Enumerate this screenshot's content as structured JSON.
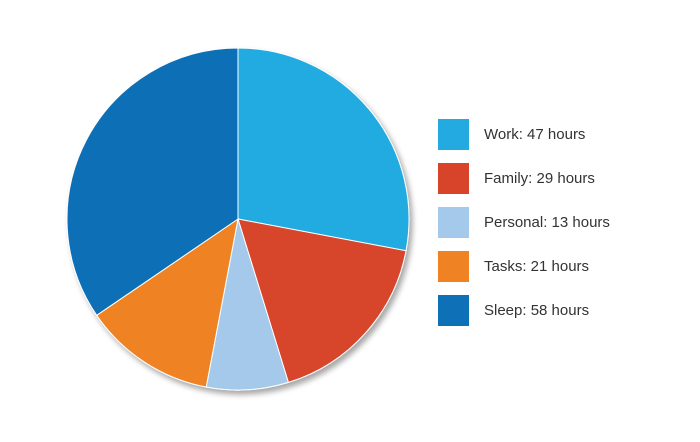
{
  "chart_data": {
    "type": "pie",
    "title": "",
    "series": [
      {
        "name": "Work",
        "value": 47,
        "label": "Work: 47 hours",
        "color": "#23abe1"
      },
      {
        "name": "Family",
        "value": 29,
        "label": "Family: 29 hours",
        "color": "#d74429"
      },
      {
        "name": "Personal",
        "value": 13,
        "label": "Personal: 13 hours",
        "color": "#a4c9ea"
      },
      {
        "name": "Tasks",
        "value": 21,
        "label": "Tasks: 21 hours",
        "color": "#ef8223"
      },
      {
        "name": "Sleep",
        "value": 58,
        "label": "Sleep: 58 hours",
        "color": "#0e70b7"
      }
    ],
    "start_angle": "12 o'clock",
    "direction": "clockwise",
    "legend_position": "right",
    "shadow": true
  }
}
